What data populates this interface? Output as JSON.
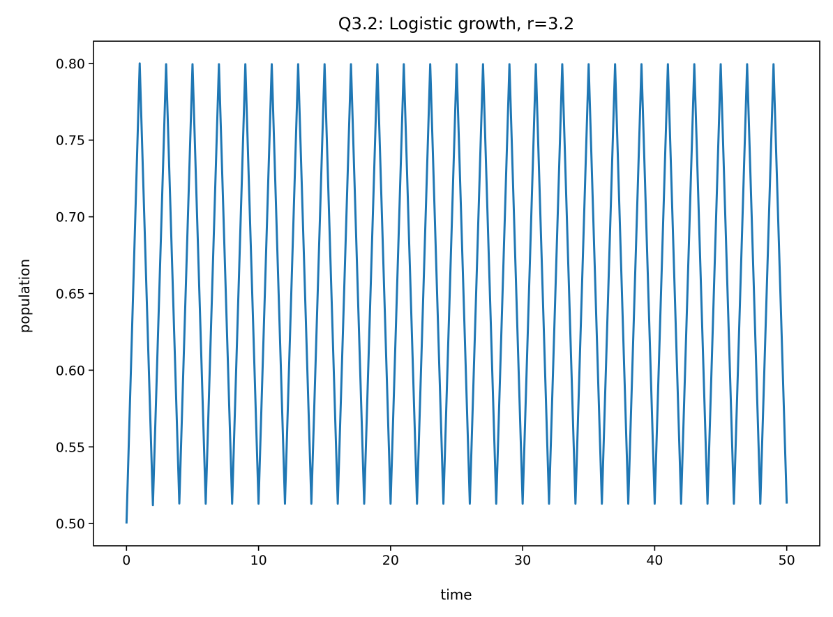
{
  "chart_data": {
    "type": "line",
    "title": "Q3.2: Logistic growth, r=3.2",
    "xlabel": "time",
    "ylabel": "population",
    "xlim": [
      -2.5,
      52.5
    ],
    "ylim": [
      0.4855,
      0.8145
    ],
    "xticks": [
      0,
      10,
      20,
      30,
      40,
      50
    ],
    "xtick_labels": [
      "0",
      "10",
      "20",
      "30",
      "40",
      "50"
    ],
    "yticks": [
      0.5,
      0.55,
      0.6,
      0.65,
      0.7,
      0.75,
      0.8
    ],
    "ytick_labels": [
      "0.50",
      "0.55",
      "0.60",
      "0.65",
      "0.70",
      "0.75",
      "0.80"
    ],
    "grid": false,
    "legend": "none",
    "series": [
      {
        "color": "#1f77b4",
        "x": [
          0,
          1,
          2,
          3,
          4,
          5,
          6,
          7,
          8,
          9,
          10,
          11,
          12,
          13,
          14,
          15,
          16,
          17,
          18,
          19,
          20,
          21,
          22,
          23,
          24,
          25,
          26,
          27,
          28,
          29,
          30,
          31,
          32,
          33,
          34,
          35,
          36,
          37,
          38,
          39,
          40,
          41,
          42,
          43,
          44,
          45,
          46,
          47,
          48,
          49,
          50
        ],
        "values": [
          0.5,
          0.8,
          0.512,
          0.7995,
          0.5131,
          0.7995,
          0.513,
          0.7995,
          0.513,
          0.7995,
          0.513,
          0.7995,
          0.513,
          0.7995,
          0.513,
          0.7995,
          0.513,
          0.7995,
          0.513,
          0.7995,
          0.513,
          0.7995,
          0.513,
          0.7995,
          0.513,
          0.7995,
          0.513,
          0.7995,
          0.513,
          0.7995,
          0.513,
          0.7995,
          0.513,
          0.7995,
          0.513,
          0.7995,
          0.513,
          0.7995,
          0.513,
          0.7995,
          0.513,
          0.7995,
          0.513,
          0.7995,
          0.513,
          0.7995,
          0.513,
          0.7995,
          0.513,
          0.7995,
          0.513
        ]
      }
    ]
  }
}
